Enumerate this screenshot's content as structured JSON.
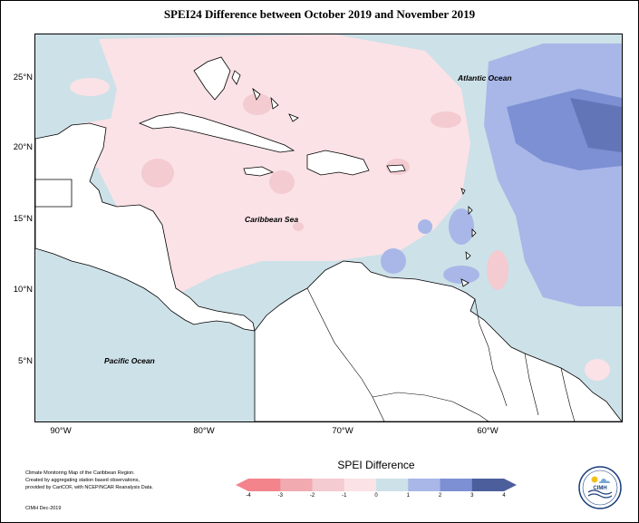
{
  "title": "SPEI24 Difference between October 2019 and November 2019",
  "latitude_labels": [
    "25°N",
    "20°N",
    "15°N",
    "10°N",
    "5°N"
  ],
  "longitude_labels": [
    "90°W",
    "80°W",
    "70°W",
    "60°W"
  ],
  "ocean_labels": {
    "atlantic": "Atlantic Ocean",
    "caribbean": "Caribbean Sea",
    "pacific": "Pacific Ocean"
  },
  "legend": {
    "title": "SPEI Difference",
    "ticks": [
      "-4",
      "-3",
      "-2",
      "-1",
      "0",
      "1",
      "2",
      "3",
      "4"
    ],
    "colors": [
      "#f4848c",
      "#f0aab0",
      "#f3cbd0",
      "#fbe2e6",
      "#cde1e8",
      "#a8b7e8",
      "#7d90d4",
      "#4c5e9c"
    ]
  },
  "credit": {
    "lines": [
      "Climate Monitoring Map of the Caribbean Region.",
      "Created by aggregating station based observations,",
      "provided by CariCOF, with NCEP/NCAR Reanalysis Data."
    ],
    "date": "CIMH Dec-2019"
  },
  "logo_text": "CIMH"
}
